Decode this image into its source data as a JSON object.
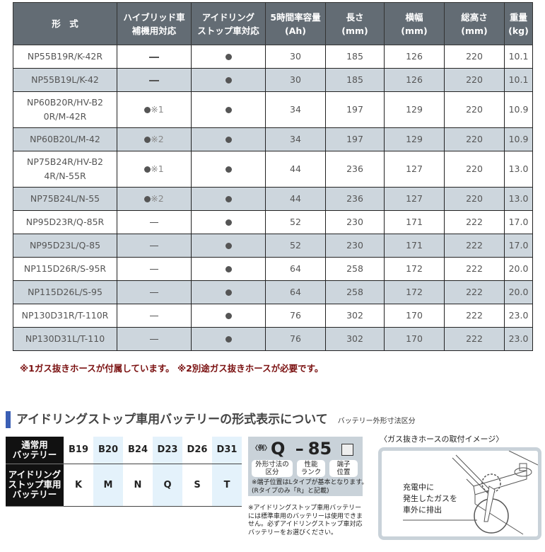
{
  "spec_table": {
    "headers": [
      "形　式",
      "ハイブリッド車\n補機用対応",
      "アイドリング\nストップ車対応",
      "5時間率容量\n(Ah)",
      "長さ\n(mm)",
      "横幅\n(mm)",
      "総高さ\n(mm)",
      "重量\n(kg)"
    ],
    "rows": [
      {
        "model": "NP55B19R/K-42R",
        "hybrid": "—",
        "hybrid_note": "",
        "idling": "●",
        "ah": "30",
        "length": "185",
        "width": "126",
        "height": "220",
        "weight": "10.1"
      },
      {
        "model": "NP55B19L/K-42",
        "hybrid": "—",
        "hybrid_note": "",
        "idling": "●",
        "ah": "30",
        "length": "185",
        "width": "126",
        "height": "220",
        "weight": "10.1"
      },
      {
        "model": "NP60B20R/HV-B20R/M-42R",
        "hybrid": "●",
        "hybrid_note": "※1",
        "idling": "●",
        "ah": "34",
        "length": "197",
        "width": "129",
        "height": "220",
        "weight": "10.9"
      },
      {
        "model": "NP60B20L/M-42",
        "hybrid": "●",
        "hybrid_note": "※2",
        "idling": "●",
        "ah": "34",
        "length": "197",
        "width": "129",
        "height": "220",
        "weight": "10.9"
      },
      {
        "model": "NP75B24R/HV-B24R/N-55R",
        "hybrid": "●",
        "hybrid_note": "※1",
        "idling": "●",
        "ah": "44",
        "length": "236",
        "width": "127",
        "height": "220",
        "weight": "13.0"
      },
      {
        "model": "NP75B24L/N-55",
        "hybrid": "●",
        "hybrid_note": "※2",
        "idling": "●",
        "ah": "44",
        "length": "236",
        "width": "127",
        "height": "220",
        "weight": "13.0"
      },
      {
        "model": "NP95D23R/Q-85R",
        "hybrid": "—",
        "hybrid_note": "",
        "idling": "●",
        "ah": "52",
        "length": "230",
        "width": "171",
        "height": "222",
        "weight": "17.0"
      },
      {
        "model": "NP95D23L/Q-85",
        "hybrid": "—",
        "hybrid_note": "",
        "idling": "●",
        "ah": "52",
        "length": "230",
        "width": "171",
        "height": "222",
        "weight": "17.0"
      },
      {
        "model": "NP115D26R/S-95R",
        "hybrid": "—",
        "hybrid_note": "",
        "idling": "●",
        "ah": "64",
        "length": "258",
        "width": "172",
        "height": "222",
        "weight": "20.0"
      },
      {
        "model": "NP115D26L/S-95",
        "hybrid": "—",
        "hybrid_note": "",
        "idling": "●",
        "ah": "64",
        "length": "258",
        "width": "172",
        "height": "222",
        "weight": "20.0"
      },
      {
        "model": "NP130D31R/T-110R",
        "hybrid": "—",
        "hybrid_note": "",
        "idling": "●",
        "ah": "76",
        "length": "302",
        "width": "170",
        "height": "222",
        "weight": "23.0"
      },
      {
        "model": "NP130D31L/T-110",
        "hybrid": "—",
        "hybrid_note": "",
        "idling": "●",
        "ah": "76",
        "length": "302",
        "width": "170",
        "height": "222",
        "weight": "23.0"
      }
    ]
  },
  "footnote": "※1ガス抜きホースが付属しています。 ※2別途ガス抜きホースが必要です。",
  "section": {
    "title": "アイドリングストップ車用バッテリーの形式表示について",
    "subtitle": "バッテリー外形寸法区分",
    "code_table": {
      "row1_label": "通常用\nバッテリー",
      "row1": [
        "B19",
        "B20",
        "B24",
        "D23",
        "D26",
        "D31"
      ],
      "row2_label": "アイドリング\nストップ車用\nバッテリー",
      "row2": [
        "K",
        "M",
        "N",
        "Q",
        "S",
        "T"
      ]
    },
    "example": {
      "prefix": "〈例〉",
      "code1": "Q",
      "dash": "–",
      "code2": "85",
      "tag1": "外形寸法の\n区分",
      "tag2": "性能\nランク",
      "tag3": "端子\n位置",
      "note1": "※端子位置はLタイプが基本となります。",
      "note2": "(Rタイプのみ「R」と記載)"
    },
    "note": "※アイドリングストップ車用バッテリーには標準車用のバッテリーは使用できません。必ずアイドリングストップ車対応バッテリーをお選びください。",
    "illustration": {
      "title": "〈ガス抜きホースの取付イメージ〉",
      "caption": "充電中に\n発生したガスを\n車外に排出"
    }
  },
  "colors": {
    "header_bg": "#636c74",
    "alt_row": "#cdd6dd",
    "footnote": "#7a1010",
    "accent": "#3a5fb5",
    "code_highlight": "#e4f2fb"
  }
}
